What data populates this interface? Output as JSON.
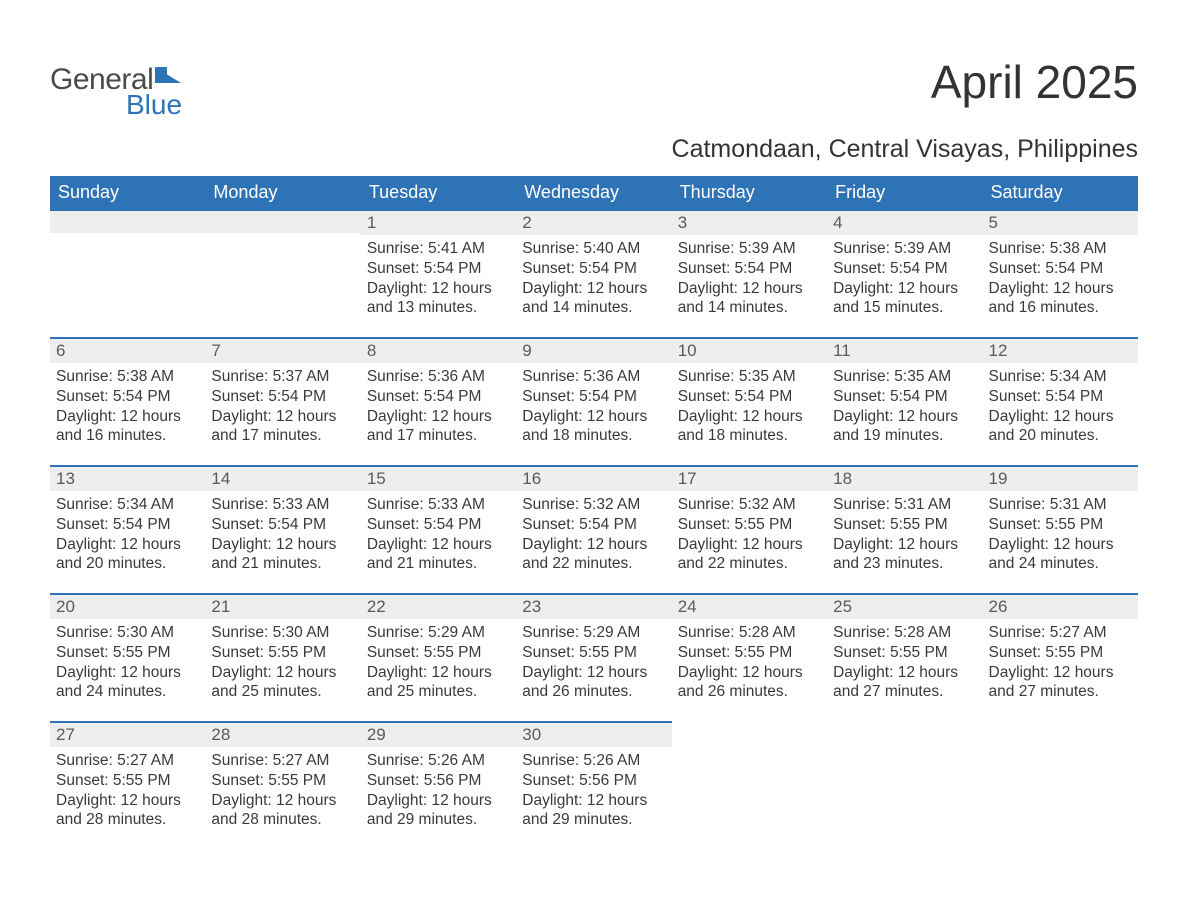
{
  "logo": {
    "general": "General",
    "blue": "Blue"
  },
  "title": "April 2025",
  "location": "Catmondaan, Central Visayas, Philippines",
  "header_bg": "#2f73b7",
  "header_fg": "#ffffff",
  "band_bg": "#eeeeee",
  "band_border": "#2f73b7",
  "text_color": "#3a3a3a",
  "daynum_color": "#5a5a5a",
  "columns": [
    "Sunday",
    "Monday",
    "Tuesday",
    "Wednesday",
    "Thursday",
    "Friday",
    "Saturday"
  ],
  "weeks": [
    [
      null,
      null,
      {
        "n": "1",
        "sunrise": "Sunrise: 5:41 AM",
        "sunset": "Sunset: 5:54 PM",
        "daylight1": "Daylight: 12 hours",
        "daylight2": "and 13 minutes."
      },
      {
        "n": "2",
        "sunrise": "Sunrise: 5:40 AM",
        "sunset": "Sunset: 5:54 PM",
        "daylight1": "Daylight: 12 hours",
        "daylight2": "and 14 minutes."
      },
      {
        "n": "3",
        "sunrise": "Sunrise: 5:39 AM",
        "sunset": "Sunset: 5:54 PM",
        "daylight1": "Daylight: 12 hours",
        "daylight2": "and 14 minutes."
      },
      {
        "n": "4",
        "sunrise": "Sunrise: 5:39 AM",
        "sunset": "Sunset: 5:54 PM",
        "daylight1": "Daylight: 12 hours",
        "daylight2": "and 15 minutes."
      },
      {
        "n": "5",
        "sunrise": "Sunrise: 5:38 AM",
        "sunset": "Sunset: 5:54 PM",
        "daylight1": "Daylight: 12 hours",
        "daylight2": "and 16 minutes."
      }
    ],
    [
      {
        "n": "6",
        "sunrise": "Sunrise: 5:38 AM",
        "sunset": "Sunset: 5:54 PM",
        "daylight1": "Daylight: 12 hours",
        "daylight2": "and 16 minutes."
      },
      {
        "n": "7",
        "sunrise": "Sunrise: 5:37 AM",
        "sunset": "Sunset: 5:54 PM",
        "daylight1": "Daylight: 12 hours",
        "daylight2": "and 17 minutes."
      },
      {
        "n": "8",
        "sunrise": "Sunrise: 5:36 AM",
        "sunset": "Sunset: 5:54 PM",
        "daylight1": "Daylight: 12 hours",
        "daylight2": "and 17 minutes."
      },
      {
        "n": "9",
        "sunrise": "Sunrise: 5:36 AM",
        "sunset": "Sunset: 5:54 PM",
        "daylight1": "Daylight: 12 hours",
        "daylight2": "and 18 minutes."
      },
      {
        "n": "10",
        "sunrise": "Sunrise: 5:35 AM",
        "sunset": "Sunset: 5:54 PM",
        "daylight1": "Daylight: 12 hours",
        "daylight2": "and 18 minutes."
      },
      {
        "n": "11",
        "sunrise": "Sunrise: 5:35 AM",
        "sunset": "Sunset: 5:54 PM",
        "daylight1": "Daylight: 12 hours",
        "daylight2": "and 19 minutes."
      },
      {
        "n": "12",
        "sunrise": "Sunrise: 5:34 AM",
        "sunset": "Sunset: 5:54 PM",
        "daylight1": "Daylight: 12 hours",
        "daylight2": "and 20 minutes."
      }
    ],
    [
      {
        "n": "13",
        "sunrise": "Sunrise: 5:34 AM",
        "sunset": "Sunset: 5:54 PM",
        "daylight1": "Daylight: 12 hours",
        "daylight2": "and 20 minutes."
      },
      {
        "n": "14",
        "sunrise": "Sunrise: 5:33 AM",
        "sunset": "Sunset: 5:54 PM",
        "daylight1": "Daylight: 12 hours",
        "daylight2": "and 21 minutes."
      },
      {
        "n": "15",
        "sunrise": "Sunrise: 5:33 AM",
        "sunset": "Sunset: 5:54 PM",
        "daylight1": "Daylight: 12 hours",
        "daylight2": "and 21 minutes."
      },
      {
        "n": "16",
        "sunrise": "Sunrise: 5:32 AM",
        "sunset": "Sunset: 5:54 PM",
        "daylight1": "Daylight: 12 hours",
        "daylight2": "and 22 minutes."
      },
      {
        "n": "17",
        "sunrise": "Sunrise: 5:32 AM",
        "sunset": "Sunset: 5:55 PM",
        "daylight1": "Daylight: 12 hours",
        "daylight2": "and 22 minutes."
      },
      {
        "n": "18",
        "sunrise": "Sunrise: 5:31 AM",
        "sunset": "Sunset: 5:55 PM",
        "daylight1": "Daylight: 12 hours",
        "daylight2": "and 23 minutes."
      },
      {
        "n": "19",
        "sunrise": "Sunrise: 5:31 AM",
        "sunset": "Sunset: 5:55 PM",
        "daylight1": "Daylight: 12 hours",
        "daylight2": "and 24 minutes."
      }
    ],
    [
      {
        "n": "20",
        "sunrise": "Sunrise: 5:30 AM",
        "sunset": "Sunset: 5:55 PM",
        "daylight1": "Daylight: 12 hours",
        "daylight2": "and 24 minutes."
      },
      {
        "n": "21",
        "sunrise": "Sunrise: 5:30 AM",
        "sunset": "Sunset: 5:55 PM",
        "daylight1": "Daylight: 12 hours",
        "daylight2": "and 25 minutes."
      },
      {
        "n": "22",
        "sunrise": "Sunrise: 5:29 AM",
        "sunset": "Sunset: 5:55 PM",
        "daylight1": "Daylight: 12 hours",
        "daylight2": "and 25 minutes."
      },
      {
        "n": "23",
        "sunrise": "Sunrise: 5:29 AM",
        "sunset": "Sunset: 5:55 PM",
        "daylight1": "Daylight: 12 hours",
        "daylight2": "and 26 minutes."
      },
      {
        "n": "24",
        "sunrise": "Sunrise: 5:28 AM",
        "sunset": "Sunset: 5:55 PM",
        "daylight1": "Daylight: 12 hours",
        "daylight2": "and 26 minutes."
      },
      {
        "n": "25",
        "sunrise": "Sunrise: 5:28 AM",
        "sunset": "Sunset: 5:55 PM",
        "daylight1": "Daylight: 12 hours",
        "daylight2": "and 27 minutes."
      },
      {
        "n": "26",
        "sunrise": "Sunrise: 5:27 AM",
        "sunset": "Sunset: 5:55 PM",
        "daylight1": "Daylight: 12 hours",
        "daylight2": "and 27 minutes."
      }
    ],
    [
      {
        "n": "27",
        "sunrise": "Sunrise: 5:27 AM",
        "sunset": "Sunset: 5:55 PM",
        "daylight1": "Daylight: 12 hours",
        "daylight2": "and 28 minutes."
      },
      {
        "n": "28",
        "sunrise": "Sunrise: 5:27 AM",
        "sunset": "Sunset: 5:55 PM",
        "daylight1": "Daylight: 12 hours",
        "daylight2": "and 28 minutes."
      },
      {
        "n": "29",
        "sunrise": "Sunrise: 5:26 AM",
        "sunset": "Sunset: 5:56 PM",
        "daylight1": "Daylight: 12 hours",
        "daylight2": "and 29 minutes."
      },
      {
        "n": "30",
        "sunrise": "Sunrise: 5:26 AM",
        "sunset": "Sunset: 5:56 PM",
        "daylight1": "Daylight: 12 hours",
        "daylight2": "and 29 minutes."
      },
      null,
      null,
      null
    ]
  ]
}
